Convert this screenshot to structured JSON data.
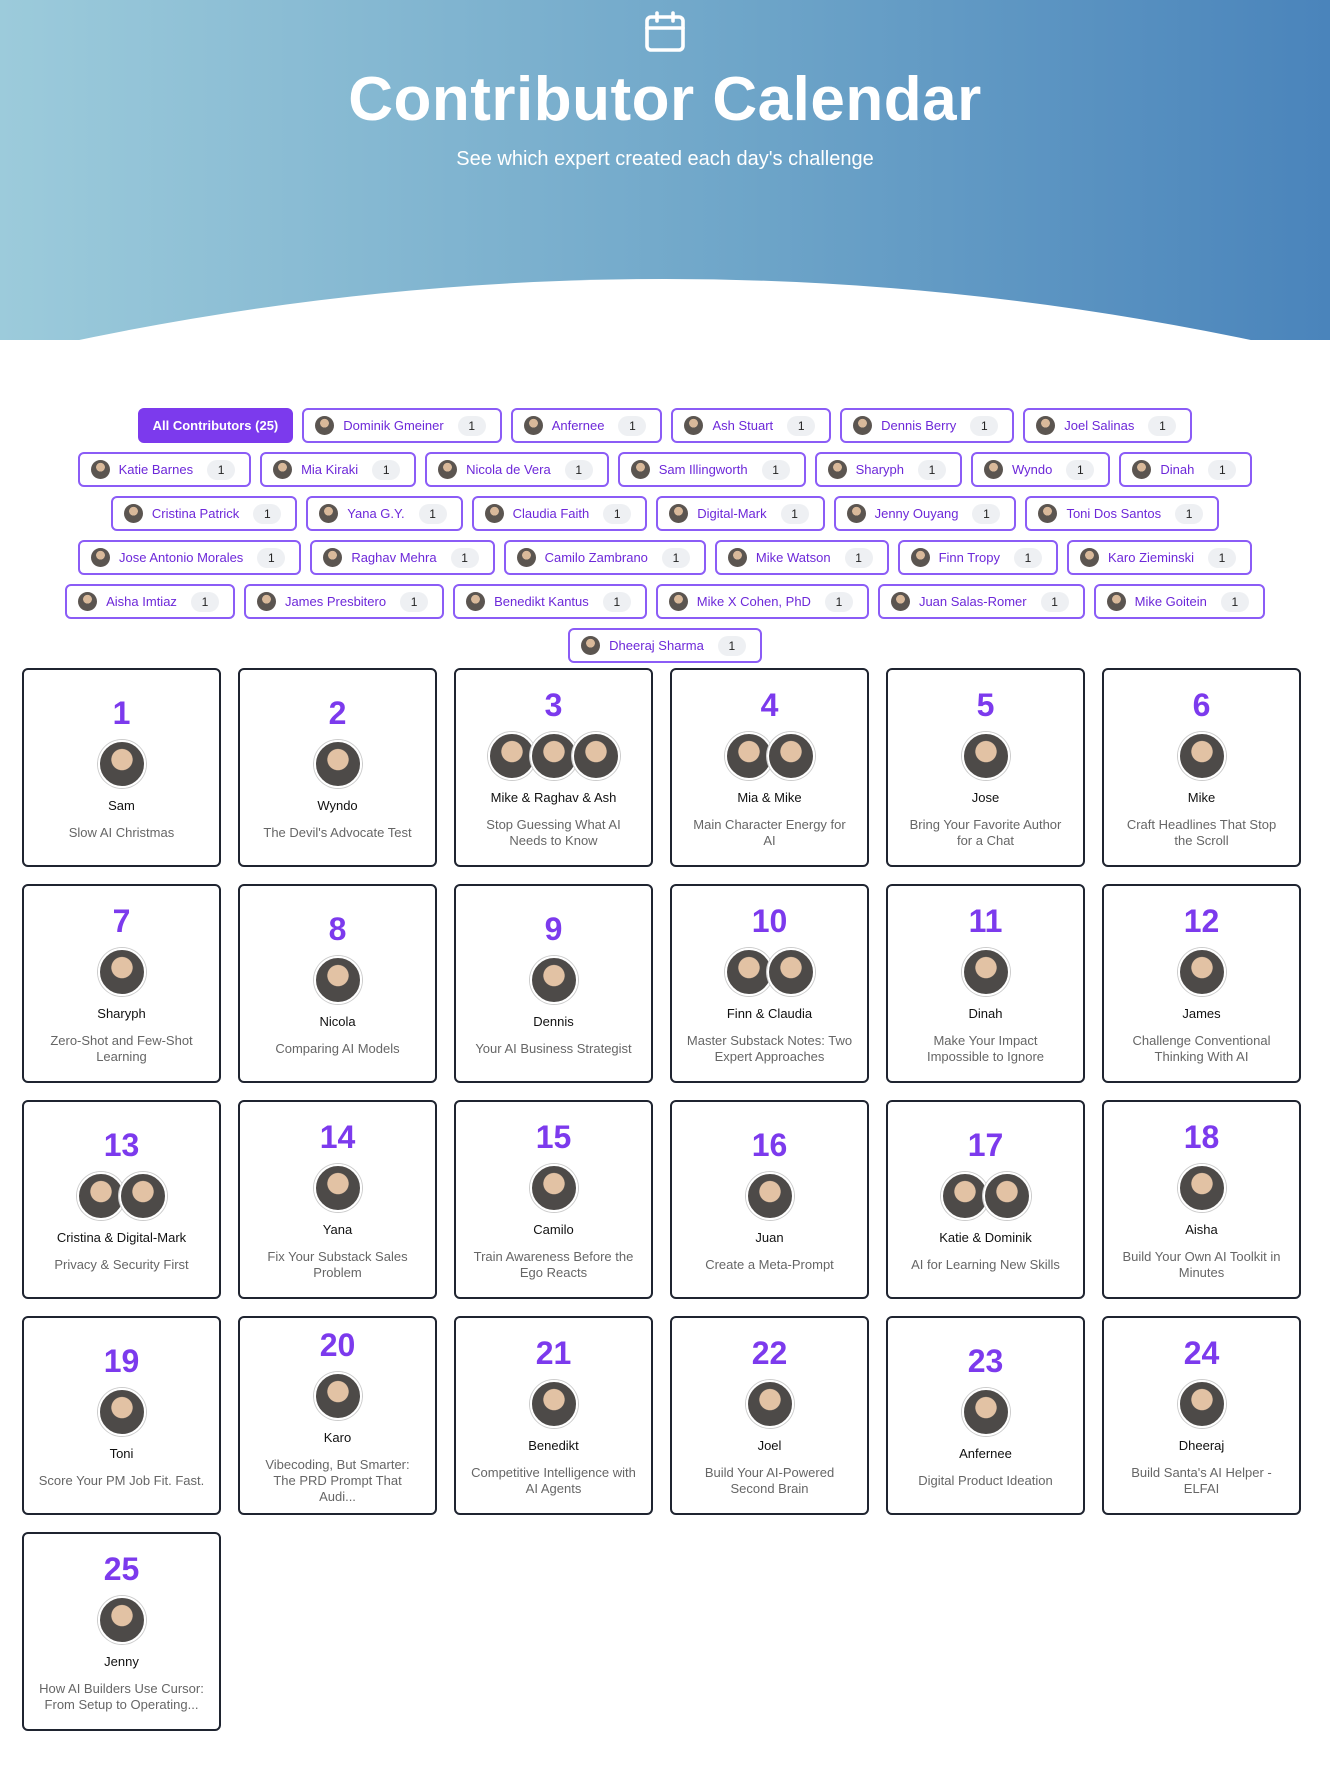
{
  "header": {
    "title": "Contributor Calendar",
    "subtitle": "See which expert created each day's challenge"
  },
  "filters": {
    "all": "All Contributors (25)",
    "contributors": [
      {
        "name": "Dominik Gmeiner",
        "count": 1
      },
      {
        "name": "Anfernee",
        "count": 1
      },
      {
        "name": "Ash Stuart",
        "count": 1
      },
      {
        "name": "Dennis Berry",
        "count": 1
      },
      {
        "name": "Joel Salinas",
        "count": 1
      },
      {
        "name": "Katie Barnes",
        "count": 1
      },
      {
        "name": "Mia Kiraki",
        "count": 1
      },
      {
        "name": "Nicola de Vera",
        "count": 1
      },
      {
        "name": "Sam Illingworth",
        "count": 1
      },
      {
        "name": "Sharyph",
        "count": 1
      },
      {
        "name": "Wyndo",
        "count": 1
      },
      {
        "name": "Dinah",
        "count": 1
      },
      {
        "name": "Cristina Patrick",
        "count": 1
      },
      {
        "name": "Yana G.Y.",
        "count": 1
      },
      {
        "name": "Claudia Faith",
        "count": 1
      },
      {
        "name": "Digital-Mark",
        "count": 1
      },
      {
        "name": "Jenny Ouyang",
        "count": 1
      },
      {
        "name": "Toni Dos Santos",
        "count": 1
      },
      {
        "name": "Jose Antonio Morales",
        "count": 1
      },
      {
        "name": "Raghav Mehra",
        "count": 1
      },
      {
        "name": "Camilo Zambrano",
        "count": 1
      },
      {
        "name": "Mike Watson",
        "count": 1
      },
      {
        "name": "Finn Tropy",
        "count": 1
      },
      {
        "name": "Karo Zieminski",
        "count": 1
      },
      {
        "name": "Aisha Imtiaz",
        "count": 1
      },
      {
        "name": "James Presbitero",
        "count": 1
      },
      {
        "name": "Benedikt Kantus",
        "count": 1
      },
      {
        "name": "Mike X Cohen, PhD",
        "count": 1
      },
      {
        "name": "Juan Salas-Romer",
        "count": 1
      },
      {
        "name": "Mike Goitein",
        "count": 1
      },
      {
        "name": "Dheeraj Sharma",
        "count": 1
      }
    ]
  },
  "days": [
    {
      "day": 1,
      "names": "Sam",
      "title": "Slow AI Christmas"
    },
    {
      "day": 2,
      "names": "Wyndo",
      "title": "The Devil's Advocate Test"
    },
    {
      "day": 3,
      "names": "Mike & Raghav & Ash",
      "title": "Stop Guessing What AI Needs to Know"
    },
    {
      "day": 4,
      "names": "Mia & Mike",
      "title": "Main Character Energy for AI"
    },
    {
      "day": 5,
      "names": "Jose",
      "title": "Bring Your Favorite Author for a Chat"
    },
    {
      "day": 6,
      "names": "Mike",
      "title": "Craft Headlines That Stop the Scroll"
    },
    {
      "day": 7,
      "names": "Sharyph",
      "title": "Zero-Shot and Few-Shot Learning"
    },
    {
      "day": 8,
      "names": "Nicola",
      "title": "Comparing AI Models"
    },
    {
      "day": 9,
      "names": "Dennis",
      "title": "Your AI Business Strategist"
    },
    {
      "day": 10,
      "names": "Finn & Claudia",
      "title": "Master Substack Notes: Two Expert Approaches"
    },
    {
      "day": 11,
      "names": "Dinah",
      "title": "Make Your Impact Impossible to Ignore"
    },
    {
      "day": 12,
      "names": "James",
      "title": "Challenge Conventional Thinking With AI"
    },
    {
      "day": 13,
      "names": "Cristina & Digital-Mark",
      "title": "Privacy & Security First"
    },
    {
      "day": 14,
      "names": "Yana",
      "title": "Fix Your Substack Sales Problem"
    },
    {
      "day": 15,
      "names": "Camilo",
      "title": "Train Awareness Before the Ego Reacts"
    },
    {
      "day": 16,
      "names": "Juan",
      "title": "Create a Meta-Prompt"
    },
    {
      "day": 17,
      "names": "Katie & Dominik",
      "title": "AI for Learning New Skills"
    },
    {
      "day": 18,
      "names": "Aisha",
      "title": "Build Your Own AI Toolkit in Minutes"
    },
    {
      "day": 19,
      "names": "Toni",
      "title": "Score Your PM Job Fit. Fast."
    },
    {
      "day": 20,
      "names": "Karo",
      "title": "Vibecoding, But Smarter: The PRD Prompt That Audi..."
    },
    {
      "day": 21,
      "names": "Benedikt",
      "title": "Competitive Intelligence with AI Agents"
    },
    {
      "day": 22,
      "names": "Joel",
      "title": "Build Your AI-Powered Second Brain"
    },
    {
      "day": 23,
      "names": "Anfernee",
      "title": "Digital Product Ideation"
    },
    {
      "day": 24,
      "names": "Dheeraj",
      "title": "Build Santa's AI Helper - ELFAI"
    },
    {
      "day": 25,
      "names": "Jenny",
      "title": "How AI Builders Use Cursor: From Setup to Operating..."
    }
  ]
}
